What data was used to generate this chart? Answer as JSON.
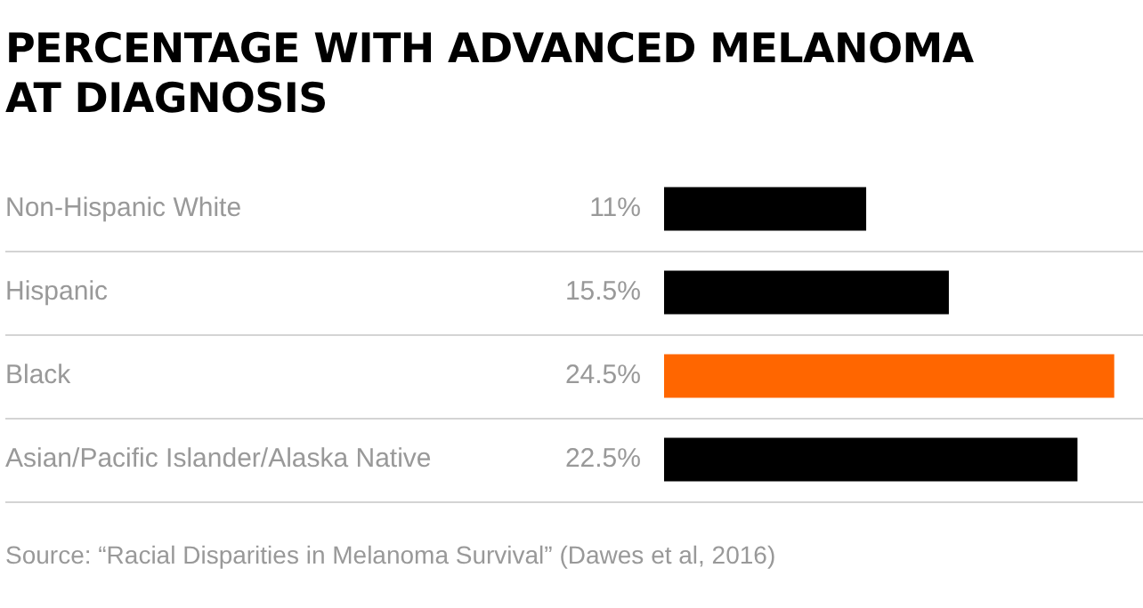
{
  "chart_data": {
    "type": "bar",
    "orientation": "horizontal",
    "title": "PERCENTAGE WITH ADVANCED MELANOMA AT DIAGNOSIS",
    "categories": [
      "Non-Hispanic White",
      "Hispanic",
      "Black",
      "Asian/Pacific Islander/Alaska Native"
    ],
    "values": [
      11,
      15.5,
      24.5,
      22.5
    ],
    "colors": [
      "#000000",
      "#000000",
      "#ff6600",
      "#000000"
    ],
    "value_labels": [
      "11%",
      "15.5%",
      "24.5%",
      "22.5%"
    ],
    "grid": "y",
    "legend": false,
    "annotations": [
      "Source: “Racial Disparities in Melanoma Survival” (Dawes et al, 2016)"
    ]
  }
}
